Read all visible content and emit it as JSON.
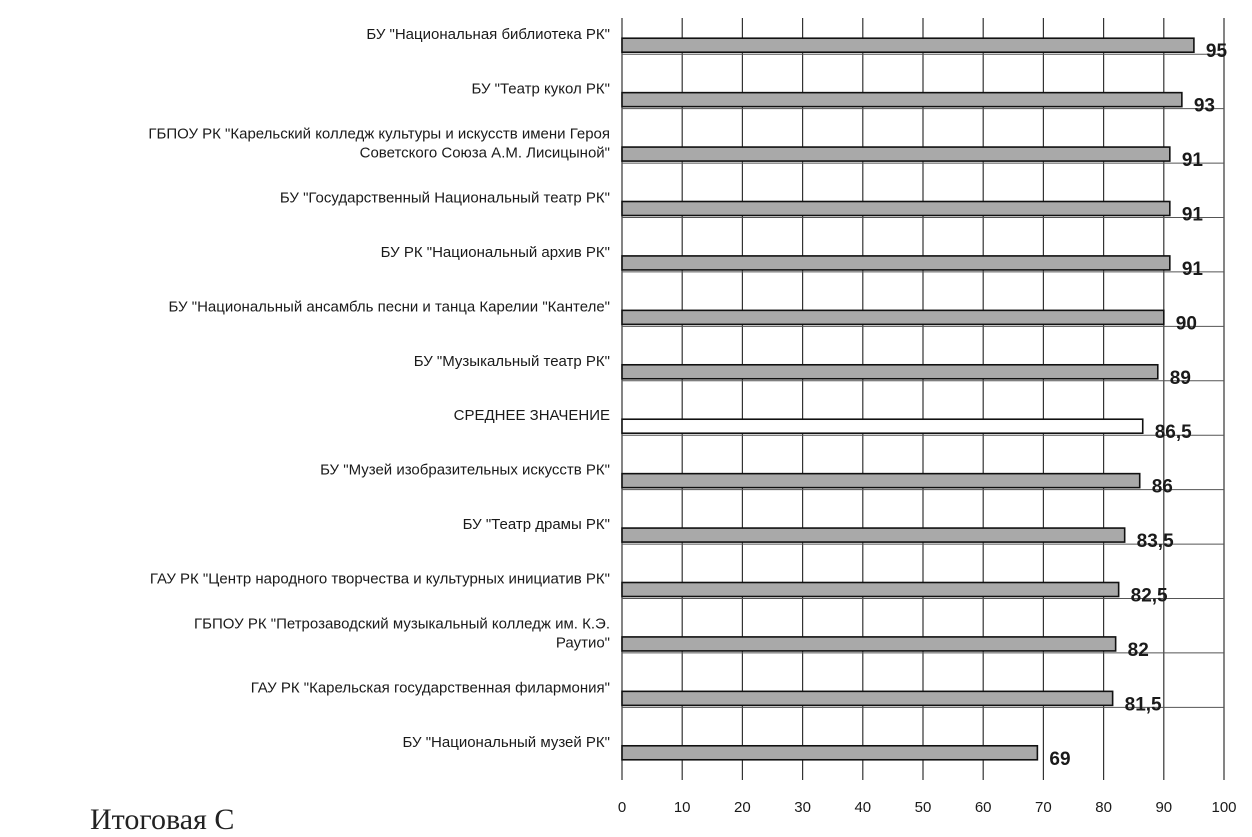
{
  "chart_data": {
    "type": "bar",
    "orientation": "horizontal",
    "categories": [
      [
        "БУ \"Национальная библиотека РК\""
      ],
      [
        "БУ \"Театр кукол РК\""
      ],
      [
        "ГБПОУ РК \"Карельский колледж культуры и искусств имени Героя",
        "Советского Союза А.М. Лисицыной\""
      ],
      [
        "БУ \"Государственный Национальный театр РК\""
      ],
      [
        "БУ РК \"Национальный архив РК\""
      ],
      [
        "БУ \"Национальный ансамбль песни и танца Карелии \"Кантеле\""
      ],
      [
        "БУ \"Музыкальный театр РК\""
      ],
      [
        "СРЕДНЕЕ ЗНАЧЕНИЕ"
      ],
      [
        "БУ \"Музей изобразительных искусств РК\""
      ],
      [
        "БУ \"Театр драмы  РК\""
      ],
      [
        "ГАУ РК \"Центр народного творчества и культурных инициатив РК\""
      ],
      [
        "ГБПОУ РК \"Петрозаводский музыкальный колледж им. К.Э.",
        "Раутио\""
      ],
      [
        "ГАУ РК \"Карельская государственная филармония\""
      ],
      [
        "БУ \"Национальный музей РК\""
      ]
    ],
    "values": [
      95,
      93,
      91,
      91,
      91,
      90,
      89,
      86.5,
      86,
      83.5,
      82.5,
      82,
      81.5,
      69
    ],
    "value_labels": [
      "95",
      "93",
      "91",
      "91",
      "91",
      "90",
      "89",
      "86,5",
      "86",
      "83,5",
      "82,5",
      "82",
      "81,5",
      "69"
    ],
    "highlight_category_index": 7,
    "xlim": [
      0,
      100
    ],
    "xticks": [
      "0",
      "10",
      "20",
      "30",
      "40",
      "50",
      "60",
      "70",
      "80",
      "90",
      "100"
    ],
    "grid": true,
    "bar_color": "#a9a9a9",
    "highlight_color": "#ffffff",
    "title": "",
    "xlabel": "",
    "ylabel": ""
  },
  "footer_text": "Итоговая С"
}
